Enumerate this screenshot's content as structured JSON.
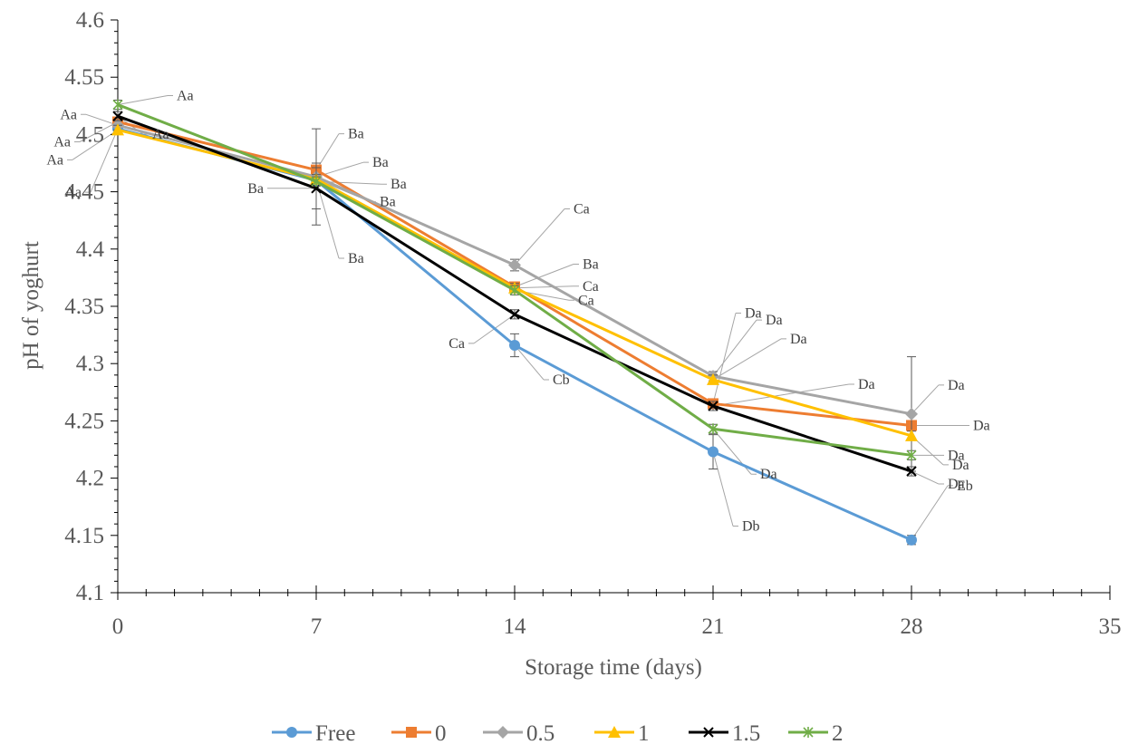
{
  "chart_data": {
    "type": "line",
    "title": "",
    "xlabel": "Storage time (days)",
    "ylabel": "pH of yoghurt",
    "xlim": [
      0,
      35
    ],
    "ylim": [
      4.1,
      4.6
    ],
    "xticks": [
      0,
      7,
      14,
      21,
      28,
      35
    ],
    "xtick_labels": [
      "0",
      "7",
      "14",
      "21",
      "28",
      "35"
    ],
    "yticks": [
      4.1,
      4.15,
      4.2,
      4.25,
      4.3,
      4.35,
      4.4,
      4.45,
      4.5,
      4.55,
      4.6
    ],
    "ytick_labels": [
      "4.1",
      "4.15",
      "4.2",
      "4.25",
      "4.3",
      "4.35",
      "4.4",
      "4.45",
      "4.5",
      "4.55",
      "4.6"
    ],
    "grid": false,
    "legend_position": "bottom",
    "x": [
      0,
      7,
      14,
      21,
      28
    ],
    "series": [
      {
        "name": "Free",
        "color": "#5B9BD5",
        "marker": "circle",
        "values": [
          4.505,
          4.46,
          4.316,
          4.223,
          4.146
        ],
        "errors": [
          0.004,
          0.004,
          0.01,
          0.015,
          0.004
        ],
        "labels": [
          "Aa",
          "Ba",
          "Cb",
          "Db",
          "Eb"
        ]
      },
      {
        "name": "0",
        "color": "#ED7D31",
        "marker": "square",
        "values": [
          4.511,
          4.469,
          4.367,
          4.265,
          4.246
        ],
        "errors": [
          0.004,
          0.006,
          0.004,
          0.004,
          0.004
        ],
        "labels": [
          "Aa",
          "Ba",
          "Ba",
          "Da",
          "Da"
        ]
      },
      {
        "name": "0.5",
        "color": "#A5A5A5",
        "marker": "diamond",
        "values": [
          4.508,
          4.463,
          4.386,
          4.289,
          4.256
        ],
        "errors": [
          0.004,
          0.042,
          0.005,
          0.004,
          0.05
        ],
        "labels": [
          "Aa",
          "Ba",
          "Ca",
          "Da",
          "Da"
        ]
      },
      {
        "name": "1",
        "color": "#FFC000",
        "marker": "triangle",
        "values": [
          4.504,
          4.461,
          4.366,
          4.286,
          4.237
        ],
        "errors": [
          0.004,
          0.004,
          0.004,
          0.004,
          0.004
        ],
        "labels": [
          "Aa",
          "Ba",
          "Ca",
          "Da",
          "Da"
        ]
      },
      {
        "name": "1.5",
        "color": "#000000",
        "marker": "x",
        "values": [
          4.516,
          4.453,
          4.343,
          4.263,
          4.206
        ],
        "errors": [
          0.004,
          0.018,
          0.004,
          0.004,
          0.004
        ],
        "labels": [
          "Aa",
          "Ba",
          "Ca",
          "Da",
          "Da"
        ]
      },
      {
        "name": "2",
        "color": "#70AD47",
        "marker": "star",
        "values": [
          4.526,
          4.459,
          4.364,
          4.243,
          4.22
        ],
        "errors": [
          0.004,
          0.004,
          0.004,
          0.004,
          0.004
        ],
        "labels": [
          "Aa",
          "Ba",
          "Ca",
          "Da",
          "Da"
        ]
      }
    ]
  }
}
